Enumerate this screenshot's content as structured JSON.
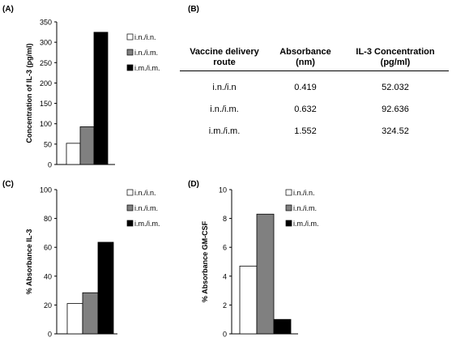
{
  "panels": {
    "A": "(A)",
    "B": "(B)",
    "C": "(C)",
    "D": "(D)"
  },
  "table": {
    "headers": [
      "Vaccine delivery route",
      "Absorbance (nm)",
      "IL-3 Concentration (pg/ml)"
    ],
    "rows": [
      [
        "i.n./i.n",
        "0.419",
        "52.032"
      ],
      [
        "i.n./i.m.",
        "0.632",
        "92.636"
      ],
      [
        "i.m./i.m.",
        "1.552",
        "324.52"
      ]
    ]
  },
  "colors": {
    "series": [
      "#ffffff",
      "#808080",
      "#000000"
    ]
  },
  "chart_data": [
    {
      "type": "bar",
      "panel": "A",
      "categories": [
        "i.n./i.n.",
        "i.n./i.m.",
        "i.m./i.m."
      ],
      "values": [
        52,
        92.6,
        324.5
      ],
      "ylabel": "Concentration  of  IL-3 (pg/ml)",
      "xlabel": "",
      "ylim": [
        0,
        350
      ],
      "yticks": [
        0,
        50,
        100,
        150,
        200,
        250,
        300,
        350
      ],
      "legend": [
        "i.n./i.n.",
        "i.n./i.m.",
        "i.m./i.m."
      ],
      "legend_position": "right"
    },
    {
      "type": "bar",
      "panel": "C",
      "categories": [
        "i.n./i.n.",
        "i.n./i.m.",
        "i.m./i.m."
      ],
      "values": [
        21,
        28.5,
        63.5
      ],
      "ylabel": "% Absorbance  IL-3",
      "xlabel": "",
      "ylim": [
        0,
        100
      ],
      "yticks": [
        0,
        20,
        40,
        60,
        80,
        100
      ],
      "legend": [
        "i.n./i.n.",
        "i.n./i.m.",
        "i.m./i.m."
      ],
      "legend_position": "right"
    },
    {
      "type": "bar",
      "panel": "D",
      "categories": [
        "i.n./i.n.",
        "i.n./i.m.",
        "i.m./i.m."
      ],
      "values": [
        4.7,
        8.3,
        1.0
      ],
      "ylabel": "% Absorbance GM-CSF",
      "xlabel": "",
      "ylim": [
        0,
        10
      ],
      "yticks": [
        0,
        2,
        4,
        6,
        8,
        10
      ],
      "legend": [
        "i.n./i.n.",
        "i.n./i.m.",
        "i.m./i.m."
      ],
      "legend_position": "right"
    }
  ]
}
